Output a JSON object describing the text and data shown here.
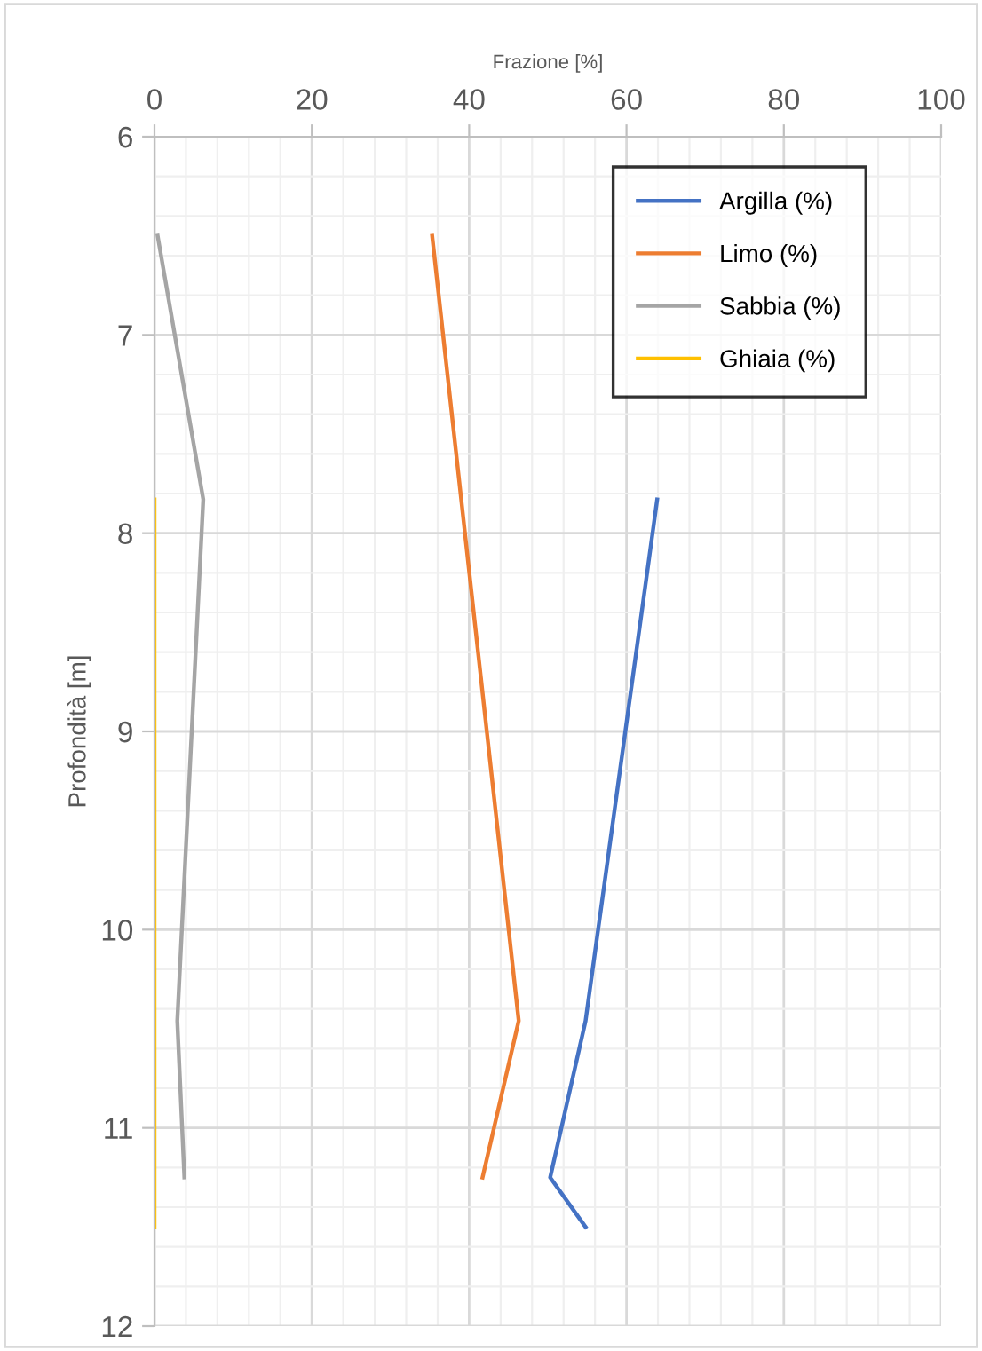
{
  "chart_data": {
    "type": "line",
    "orientation": "horizontal",
    "xlabel": "Frazione [%]",
    "ylabel": "Profondità [m]",
    "x": [
      6.5,
      7.83,
      10.46,
      11.25,
      11.5
    ],
    "series": [
      {
        "name": "Argilla (%)",
        "color": "#4472c4",
        "values": [
          null,
          63.9,
          54.8,
          50.3,
          54.8
        ]
      },
      {
        "name": "Limo (%)",
        "color": "#ed7d31",
        "values": [
          35.3,
          null,
          46.3,
          41.7,
          null
        ]
      },
      {
        "name": "Sabbia (%)",
        "color": "#a5a5a5",
        "values": [
          0.4,
          6.2,
          2.9,
          3.8,
          null
        ]
      },
      {
        "name": "Ghiaia (%)",
        "color": "#ffc000",
        "values": [
          null,
          0,
          0,
          0,
          0
        ]
      }
    ],
    "xlim": [
      0,
      100
    ],
    "xticks": [
      0,
      20,
      40,
      60,
      80,
      100
    ],
    "ylim": [
      12,
      6
    ],
    "yticks": [
      6,
      7,
      8,
      9,
      10,
      11,
      12
    ],
    "grid": true,
    "legend": "top right",
    "marker": "none",
    "line_style": "solid"
  }
}
